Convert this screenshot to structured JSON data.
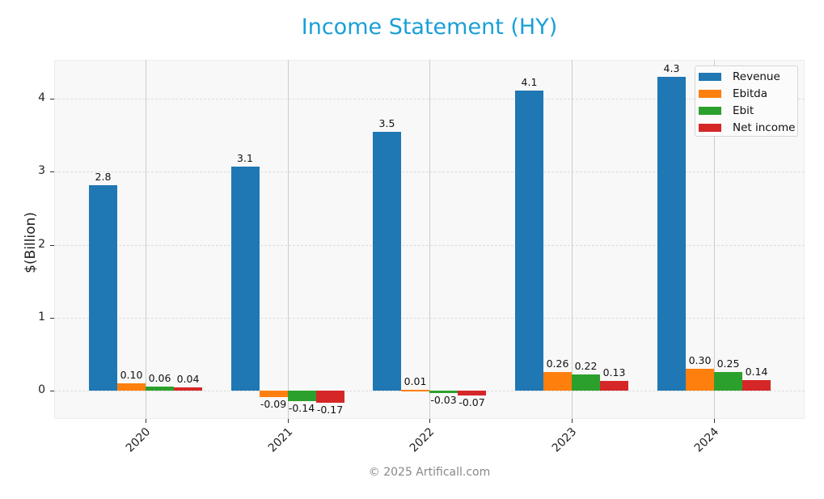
{
  "header": {
    "title": "Income Statement (HY)"
  },
  "footer": {
    "copyright": "© 2025 Artificall.com"
  },
  "colors": {
    "Revenue": "#1f77b4",
    "Ebitda": "#ff7f0e",
    "Ebit": "#2ca02c",
    "Net income": "#d62728",
    "title": "#1a9fd6"
  },
  "chart_data": {
    "type": "bar",
    "title": "Income Statement (HY)",
    "xlabel": "",
    "ylabel": "$(Billion)",
    "ylim": [
      -0.4,
      4.55
    ],
    "yticks": [
      0,
      1,
      2,
      3,
      4
    ],
    "grid": true,
    "legend_position": "upper right",
    "categories": [
      "2020",
      "2021",
      "2022",
      "2023",
      "2024"
    ],
    "series": [
      {
        "name": "Revenue",
        "values": [
          2.8,
          3.1,
          3.5,
          4.1,
          4.3
        ],
        "labels": [
          "2.8",
          "3.1",
          "3.5",
          "4.1",
          "4.3"
        ],
        "plot_values": [
          2.81,
          3.07,
          3.55,
          4.11,
          4.3
        ]
      },
      {
        "name": "Ebitda",
        "values": [
          0.1,
          -0.09,
          0.01,
          0.26,
          0.3
        ],
        "labels": [
          "0.10",
          "-0.09",
          "0.01",
          "0.26",
          "0.30"
        ]
      },
      {
        "name": "Ebit",
        "values": [
          0.06,
          -0.14,
          -0.03,
          0.22,
          0.25
        ],
        "labels": [
          "0.06",
          "-0.14",
          "-0.03",
          "0.22",
          "0.25"
        ]
      },
      {
        "name": "Net income",
        "values": [
          0.04,
          -0.17,
          -0.07,
          0.13,
          0.14
        ],
        "labels": [
          "0.04",
          "-0.17",
          "-0.07",
          "0.13",
          "0.14"
        ]
      }
    ]
  }
}
